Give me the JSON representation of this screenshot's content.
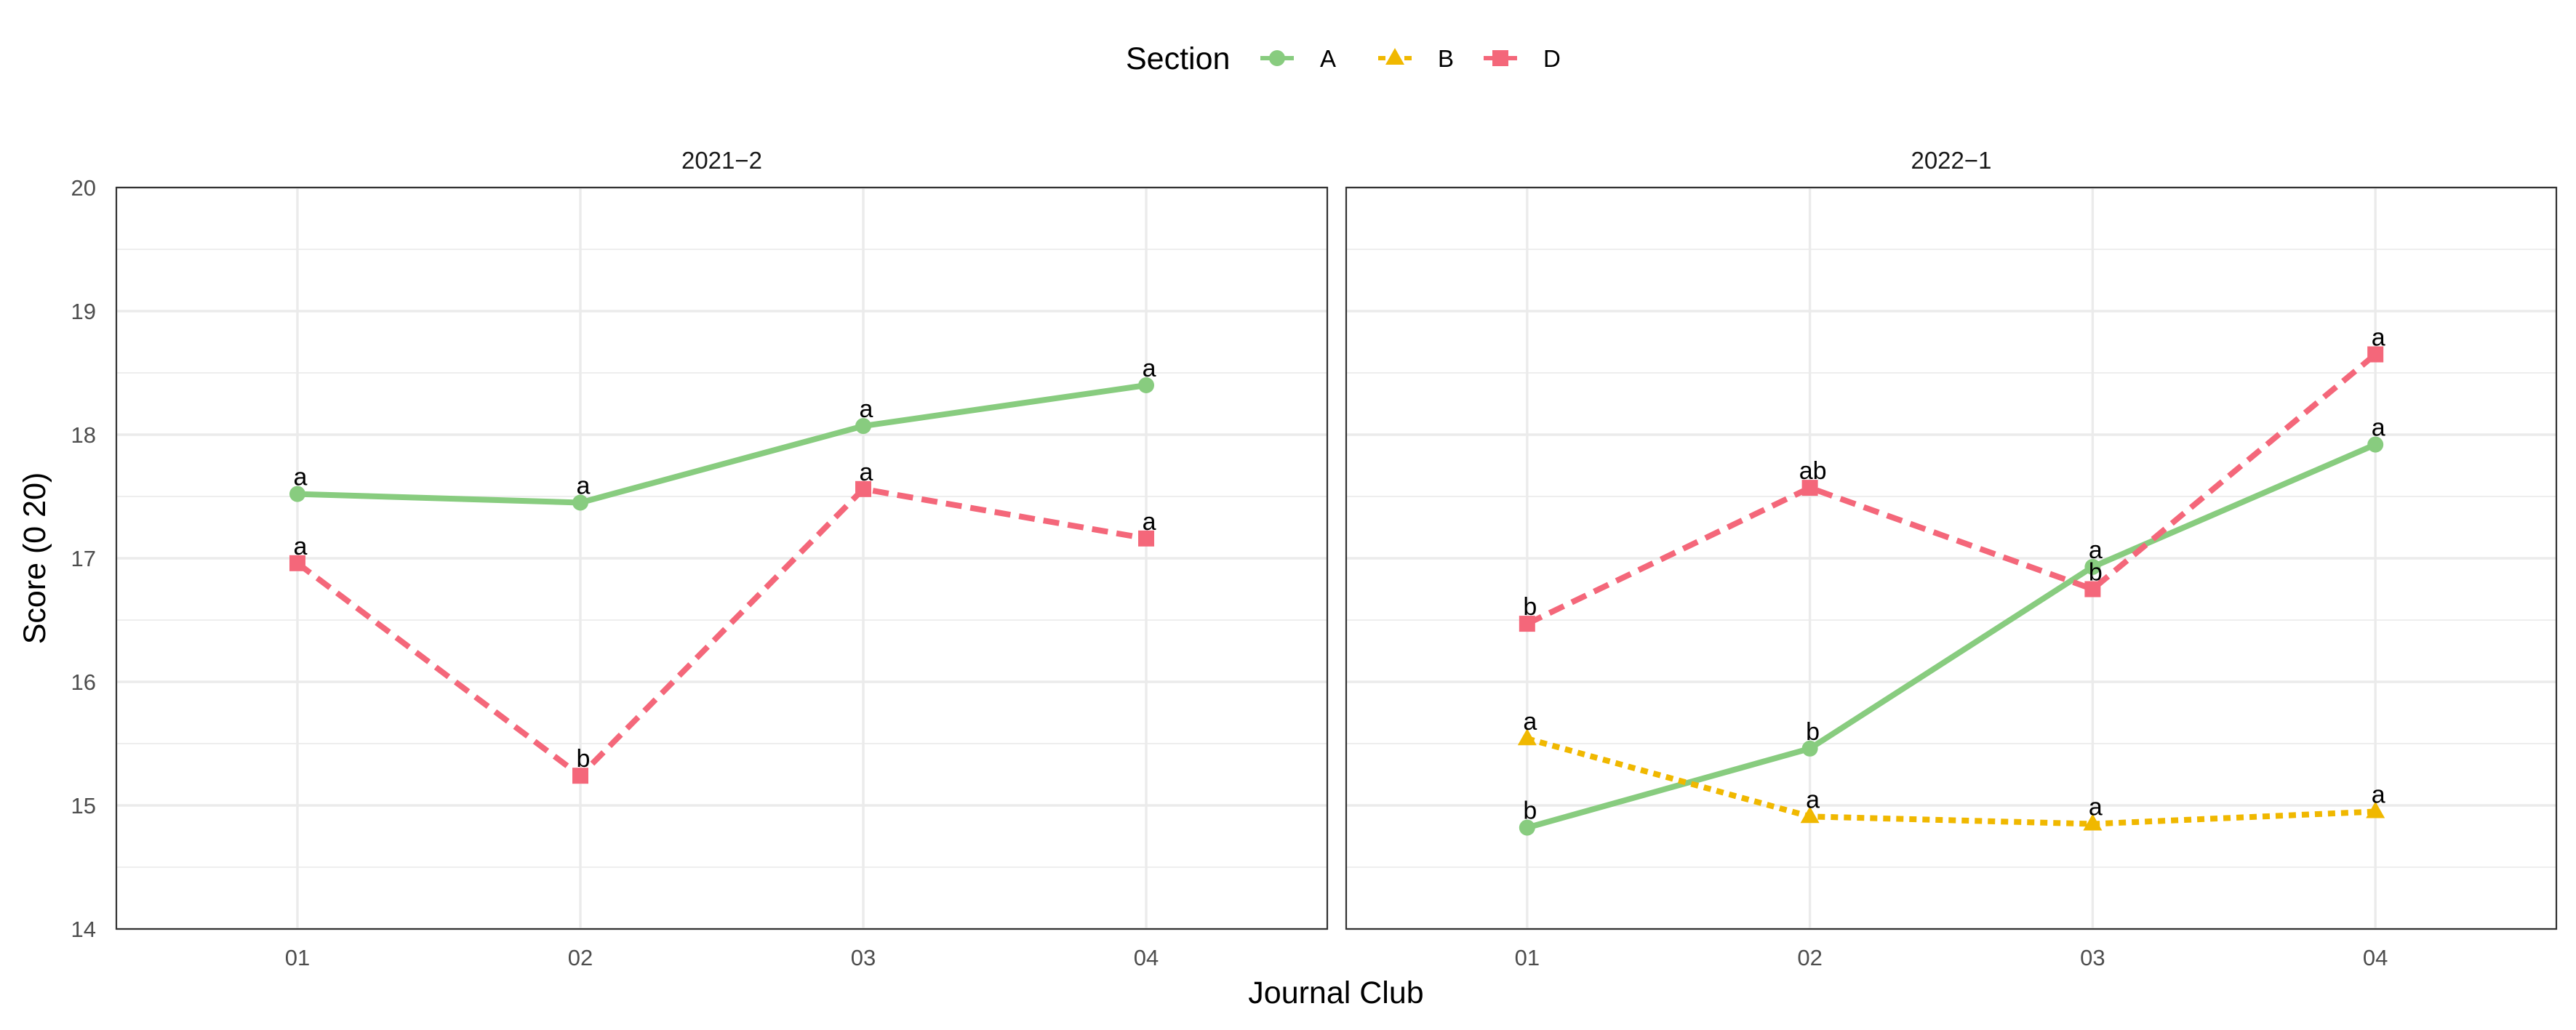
{
  "chart_data": {
    "type": "line",
    "xlabel": "Journal Club",
    "ylabel": "Score (0   20)",
    "ylim": [
      14,
      20
    ],
    "yticks": [
      "14",
      "15",
      "16",
      "17",
      "18",
      "19",
      "20"
    ],
    "categories": [
      "01",
      "02",
      "03",
      "04"
    ],
    "grid": true,
    "legend": {
      "title": "Section",
      "position": "top",
      "entries": [
        {
          "name": "A",
          "color": "#88cc7f",
          "marker": "circle",
          "dash": "solid"
        },
        {
          "name": "B",
          "color": "#f0b800",
          "marker": "triangle",
          "dash": "dotted"
        },
        {
          "name": "D",
          "color": "#f4677a",
          "marker": "square",
          "dash": "dashed"
        }
      ]
    },
    "panels": [
      {
        "title": "2021−2",
        "series": [
          {
            "name": "A",
            "values": [
              17.52,
              17.45,
              18.07,
              18.4
            ],
            "labels": [
              "a",
              "a",
              "a",
              "a"
            ]
          },
          {
            "name": "D",
            "values": [
              16.96,
              15.24,
              17.56,
              17.16
            ],
            "labels": [
              "a",
              "b",
              "a",
              "a"
            ]
          }
        ]
      },
      {
        "title": "2022−1",
        "series": [
          {
            "name": "A",
            "values": [
              14.82,
              15.46,
              16.93,
              17.92
            ],
            "labels": [
              "b",
              "b",
              "a",
              "a"
            ]
          },
          {
            "name": "B",
            "values": [
              15.54,
              14.91,
              14.85,
              14.95
            ],
            "labels": [
              "a",
              "a",
              "a",
              "a"
            ]
          },
          {
            "name": "D",
            "values": [
              16.47,
              17.57,
              16.75,
              18.65
            ],
            "labels": [
              "b",
              "ab",
              "b",
              "a"
            ]
          }
        ]
      }
    ]
  }
}
